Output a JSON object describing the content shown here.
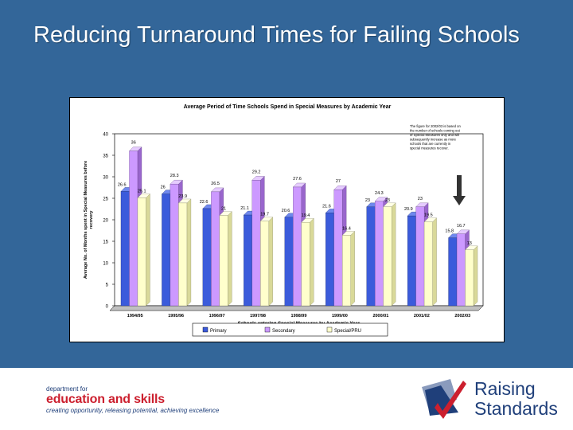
{
  "slide": {
    "title": "Reducing Turnaround Times for Failing Schools"
  },
  "colors": {
    "background": "#336699",
    "primary": "#3b5bdb",
    "secondary": "#cc99ff",
    "special": "#ffffcc"
  },
  "chart_data": {
    "type": "bar",
    "title": "Average Period of Time Schools Spend in Special Measures by Academic Year",
    "xlabel": "Schools entering Special Measures by Academic Year",
    "ylabel": "Average No. of Months spent in Special Measures before recovery",
    "ylim": [
      0,
      40
    ],
    "yticks": [
      0,
      5,
      10,
      15,
      20,
      25,
      30,
      35,
      40
    ],
    "categories": [
      "1994/95",
      "1995/96",
      "1996/97",
      "1997/98",
      "1998/99",
      "1999/00",
      "2000/01",
      "2001/02",
      "2002/03"
    ],
    "series": [
      {
        "name": "Primary",
        "values": [
          26.6,
          26,
          22.6,
          21.1,
          20.6,
          21.6,
          23,
          20.9,
          15.8
        ],
        "labels": [
          "26.6",
          "26",
          "22.6",
          "21.1",
          "20.6",
          "21.6",
          "23",
          "20.9",
          "15.8"
        ]
      },
      {
        "name": "Secondary",
        "values": [
          36,
          28.3,
          26.5,
          29.2,
          27.6,
          27,
          24.3,
          23,
          16.7
        ],
        "labels": [
          "36",
          "28.3",
          "26.5",
          "29.2",
          "27.6",
          "27",
          "24.3",
          "23",
          "16.7"
        ]
      },
      {
        "name": "Special/PRU",
        "values": [
          25.1,
          23.9,
          21,
          19.7,
          19.4,
          16.4,
          23,
          19.5,
          13
        ],
        "labels": [
          "25.1",
          "23.9",
          "21",
          "19.7",
          "19.4",
          "16.4",
          "23",
          "19.5",
          "13"
        ]
      }
    ],
    "legend_position": "bottom",
    "grid": false,
    "annotation": "The figure for 2002/03 is based on the number of schools coming out of Special Measures only and will subsequently increase as more schools that are currently in special measures recover."
  },
  "footer": {
    "dfes_line1": "department for",
    "dfes_line2": "education and skills",
    "dfes_line3": "creating opportunity, releasing potential, achieving excellence",
    "rs_line1": "Raising",
    "rs_line2": "Standards"
  }
}
